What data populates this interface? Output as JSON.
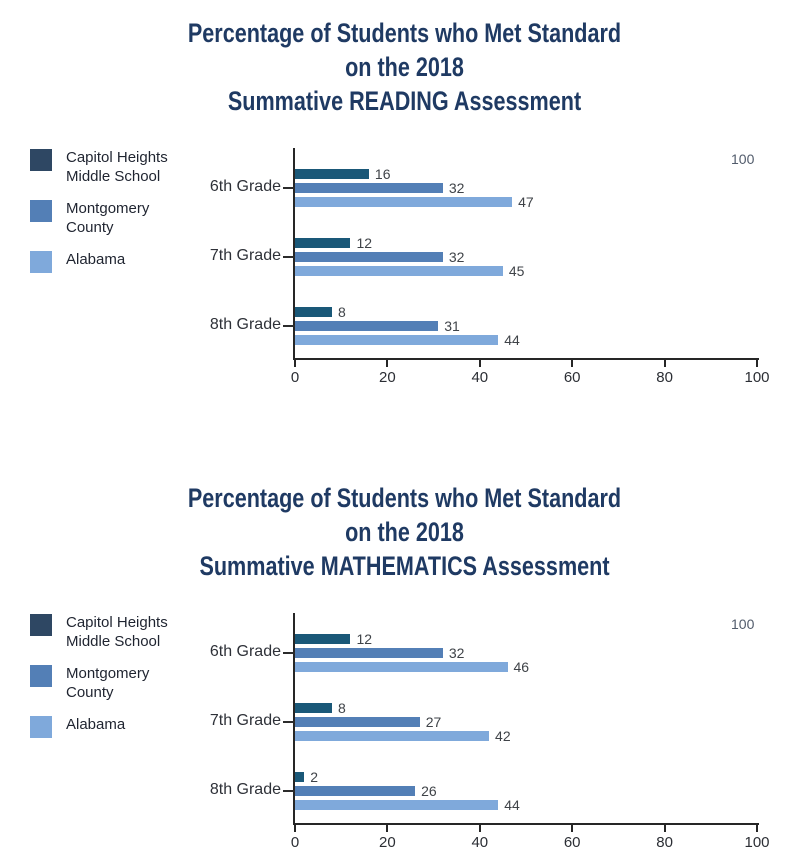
{
  "page": {
    "background": "#ffffff",
    "title_color": "#1f3a63"
  },
  "chart_data": [
    {
      "type": "bar",
      "orientation": "horizontal",
      "title": "Percentage of Students who Met Standard on the 2018 Summative READING Assessment",
      "title_lines": [
        "Percentage of Students who Met Standard",
        "on the 2018",
        "Summative READING Assessment"
      ],
      "categories": [
        "6th Grade",
        "7th Grade",
        "8th Grade"
      ],
      "series": [
        {
          "name": "Capitol Heights Middle School",
          "legend_lines": [
            "Capitol Heights",
            "Middle School"
          ],
          "legend_color": "#2e4763",
          "color": "#1a5878",
          "values": [
            16,
            12,
            8
          ]
        },
        {
          "name": "Montgomery County",
          "legend_lines": [
            "Montgomery",
            "County"
          ],
          "legend_color": "#537fb6",
          "color": "#537fb6",
          "values": [
            32,
            32,
            31
          ]
        },
        {
          "name": "Alabama",
          "legend_lines": [
            "Alabama"
          ],
          "legend_color": "#7fa9db",
          "color": "#7fa9db",
          "values": [
            47,
            45,
            44
          ]
        }
      ],
      "xlabel": "",
      "ylabel": "",
      "xlim": [
        0,
        100
      ],
      "x_ticks": [
        0,
        20,
        40,
        60,
        80,
        100
      ],
      "annotation": "100",
      "data_labels": true,
      "legend_position": "left",
      "grid": false
    },
    {
      "type": "bar",
      "orientation": "horizontal",
      "title": "Percentage of Students who Met Standard on the 2018 Summative MATHEMATICS Assessment",
      "title_lines": [
        "Percentage of Students who Met Standard",
        "on the 2018",
        "Summative MATHEMATICS Assessment"
      ],
      "categories": [
        "6th Grade",
        "7th Grade",
        "8th Grade"
      ],
      "series": [
        {
          "name": "Capitol Heights Middle School",
          "legend_lines": [
            "Capitol Heights",
            "Middle School"
          ],
          "legend_color": "#2e4763",
          "color": "#1a5878",
          "values": [
            12,
            8,
            2
          ]
        },
        {
          "name": "Montgomery County",
          "legend_lines": [
            "Montgomery",
            "County"
          ],
          "legend_color": "#537fb6",
          "color": "#537fb6",
          "values": [
            32,
            27,
            26
          ]
        },
        {
          "name": "Alabama",
          "legend_lines": [
            "Alabama"
          ],
          "legend_color": "#7fa9db",
          "color": "#7fa9db",
          "values": [
            46,
            42,
            44
          ]
        }
      ],
      "xlabel": "",
      "ylabel": "",
      "xlim": [
        0,
        100
      ],
      "x_ticks": [
        0,
        20,
        40,
        60,
        80,
        100
      ],
      "annotation": "100",
      "data_labels": true,
      "legend_position": "left",
      "grid": false
    }
  ]
}
